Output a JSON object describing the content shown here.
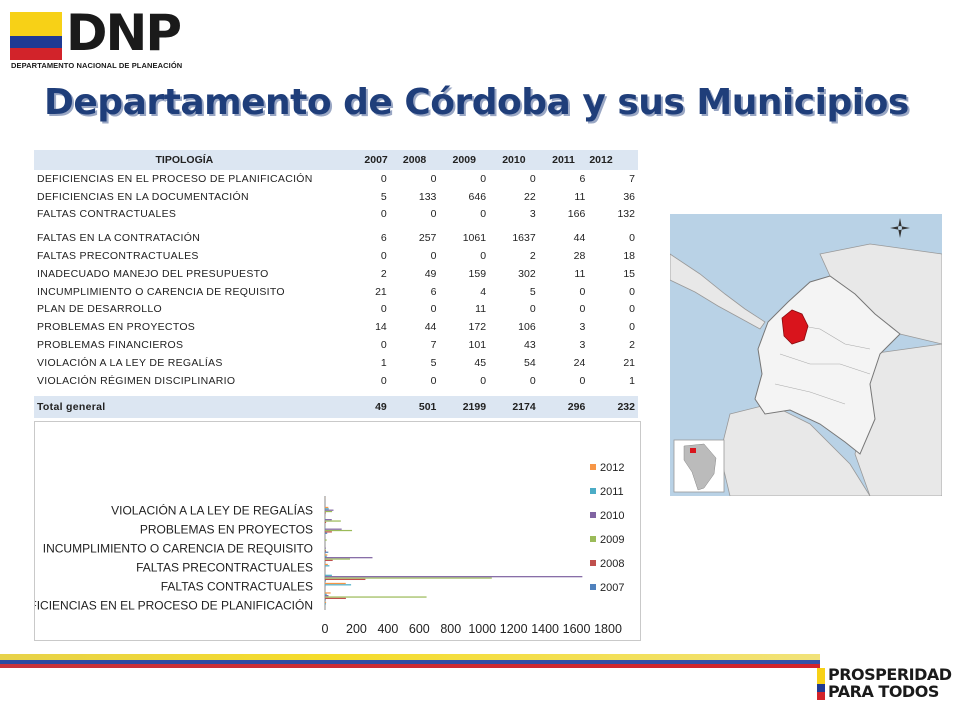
{
  "header": {
    "logo_text": "DNP",
    "logo_subtitle": "DEPARTAMENTO NACIONAL DE PLANEACIÓN"
  },
  "title": "Departamento de Córdoba y sus Municipios",
  "table": {
    "headers": [
      "TIPOLOGÍA",
      "2007",
      "2008",
      "2009",
      "2010",
      "2011",
      "2012"
    ],
    "rows": [
      {
        "name": "DEFICIENCIAS EN EL PROCESO DE PLANIFICACIÓN",
        "values": [
          "0",
          "0",
          "0",
          "0",
          "6",
          "7"
        ]
      },
      {
        "name": "DEFICIENCIAS EN LA DOCUMENTACIÓN",
        "values": [
          "5",
          "133",
          "646",
          "22",
          "11",
          "36"
        ]
      },
      {
        "name": "FALTAS CONTRACTUALES",
        "values": [
          "0",
          "0",
          "0",
          "3",
          "166",
          "132"
        ]
      },
      {
        "name": "FALTAS EN LA CONTRATACIÓN",
        "values": [
          "6",
          "257",
          "1061",
          "1637",
          "44",
          "0"
        ]
      },
      {
        "name": "FALTAS PRECONTRACTUALES",
        "values": [
          "0",
          "0",
          "0",
          "2",
          "28",
          "18"
        ]
      },
      {
        "name": "INADECUADO MANEJO DEL PRESUPUESTO",
        "values": [
          "2",
          "49",
          "159",
          "302",
          "11",
          "15"
        ]
      },
      {
        "name": "INCUMPLIMIENTO O CARENCIA DE REQUISITO",
        "values": [
          "21",
          "6",
          "4",
          "5",
          "0",
          "0"
        ]
      },
      {
        "name": "PLAN DE DESARROLLO",
        "values": [
          "0",
          "0",
          "11",
          "0",
          "0",
          "0"
        ]
      },
      {
        "name": "PROBLEMAS EN PROYECTOS",
        "values": [
          "14",
          "44",
          "172",
          "106",
          "3",
          "0"
        ]
      },
      {
        "name": "PROBLEMAS FINANCIEROS",
        "values": [
          "0",
          "7",
          "101",
          "43",
          "3",
          "2"
        ]
      },
      {
        "name": "VIOLACIÓN A LA LEY DE REGALÍAS",
        "values": [
          "1",
          "5",
          "45",
          "54",
          "24",
          "21"
        ]
      },
      {
        "name": "VIOLACIÓN RÉGIMEN DISCIPLINARIO",
        "values": [
          "0",
          "0",
          "0",
          "0",
          "0",
          "1"
        ]
      }
    ],
    "total": {
      "name": "Total general",
      "values": [
        "49",
        "501",
        "2199",
        "2174",
        "296",
        "232"
      ]
    }
  },
  "chart_data": {
    "type": "bar",
    "orientation": "horizontal",
    "categories": [
      "DEFICIENCIAS EN EL PROCESO DE PLANIFICACIÓN",
      "DEFICIENCIAS EN LA DOCUMENTACIÓN",
      "FALTAS CONTRACTUALES",
      "FALTAS EN LA CONTRATACIÓN",
      "FALTAS PRECONTRACTUALES",
      "INADECUADO MANEJO DEL PRESUPUESTO",
      "INCUMPLIMIENTO O CARENCIA DE REQUISITO",
      "PLAN DE DESARROLLO",
      "PROBLEMAS EN PROYECTOS",
      "PROBLEMAS FINANCIEROS",
      "VIOLACIÓN A LA LEY DE REGALÍAS",
      "VIOLACIÓN RÉGIMEN DISCIPLINARIO"
    ],
    "visible_category_labels": [
      "DEFICIENCIAS EN EL PROCESO DE PLANIFICACIÓN",
      "FALTAS CONTRACTUALES",
      "FALTAS PRECONTRACTUALES",
      "INCUMPLIMIENTO O CARENCIA DE REQUISITO",
      "PROBLEMAS EN PROYECTOS",
      "VIOLACIÓN A LA LEY DE REGALÍAS"
    ],
    "series": [
      {
        "name": "2007",
        "color": "#4f81bd",
        "values": [
          0,
          5,
          0,
          6,
          0,
          2,
          21,
          0,
          14,
          0,
          1,
          0
        ]
      },
      {
        "name": "2008",
        "color": "#c0504d",
        "values": [
          0,
          133,
          0,
          257,
          0,
          49,
          6,
          0,
          44,
          7,
          5,
          0
        ]
      },
      {
        "name": "2009",
        "color": "#9bbb59",
        "values": [
          0,
          646,
          0,
          1061,
          0,
          159,
          4,
          11,
          172,
          101,
          45,
          0
        ]
      },
      {
        "name": "2010",
        "color": "#8064a2",
        "values": [
          0,
          22,
          3,
          1637,
          2,
          302,
          5,
          0,
          106,
          43,
          54,
          0
        ]
      },
      {
        "name": "2011",
        "color": "#4bacc6",
        "values": [
          6,
          11,
          166,
          44,
          28,
          11,
          0,
          0,
          3,
          3,
          24,
          0
        ]
      },
      {
        "name": "2012",
        "color": "#f79646",
        "values": [
          7,
          36,
          132,
          0,
          18,
          15,
          0,
          0,
          0,
          2,
          21,
          1
        ]
      }
    ],
    "legend_order": [
      "2012",
      "2011",
      "2010",
      "2009",
      "2008",
      "2007"
    ],
    "xlim": [
      0,
      1800
    ],
    "xticks": [
      "0",
      "200",
      "400",
      "600",
      "800",
      "1000",
      "1200",
      "1400",
      "1600",
      "1800"
    ],
    "legend_position": "right",
    "grid": false
  },
  "footer": {
    "slogan_line1": "PROSPERIDAD",
    "slogan_line2": "PARA TODOS"
  }
}
